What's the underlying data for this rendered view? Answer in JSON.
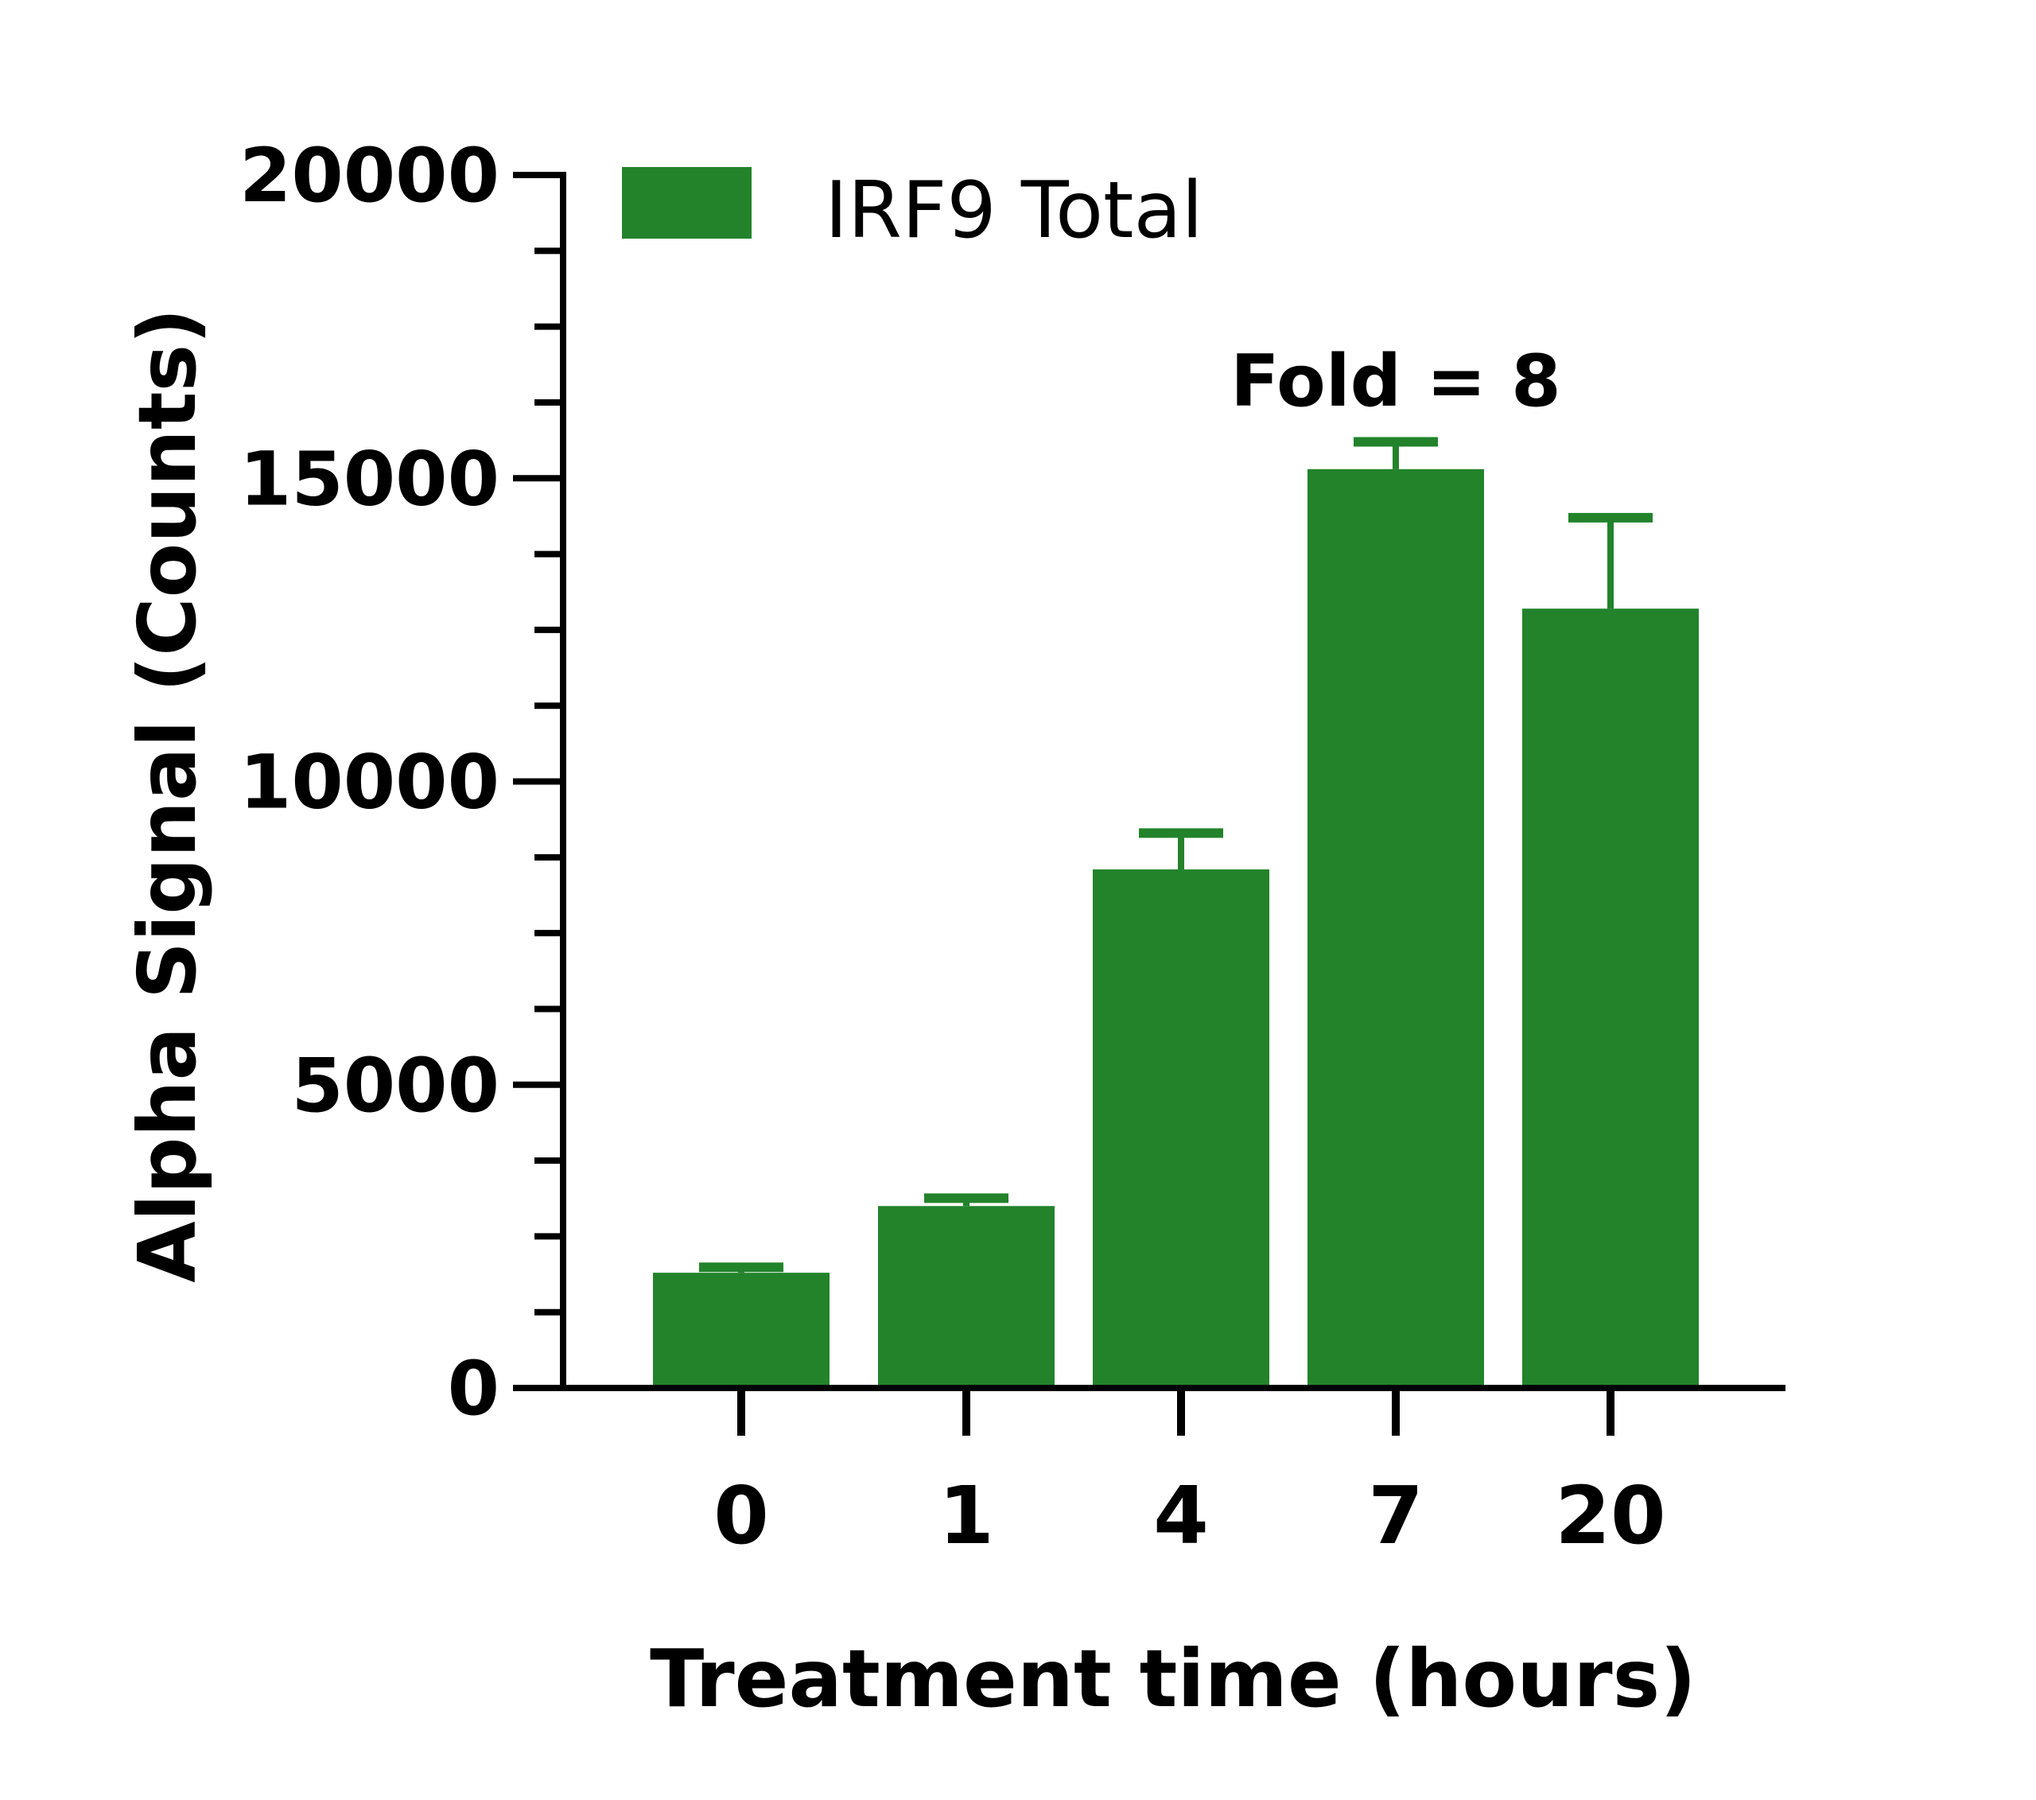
{
  "chart_data": {
    "type": "bar",
    "categories": [
      "0",
      "1",
      "4",
      "7",
      "20"
    ],
    "series": [
      {
        "name": "IRF9 Total",
        "values": [
          1900,
          3000,
          8550,
          15150,
          12850
        ],
        "errors": [
          90,
          130,
          600,
          450,
          1500
        ]
      }
    ],
    "xlabel": "Treatment time (hours)",
    "ylabel": "Alpha Signal (Counts)",
    "ylim": [
      0,
      20000
    ],
    "yticks": [
      0,
      5000,
      10000,
      15000,
      20000
    ],
    "y_minor_step": 1250,
    "annotation": {
      "text": "Fold = 8",
      "category": "7"
    },
    "legend_position": "top-left",
    "grid": false,
    "colors": {
      "bar": "#22832b",
      "axis": "#000000",
      "annotation": "#22832b"
    }
  }
}
